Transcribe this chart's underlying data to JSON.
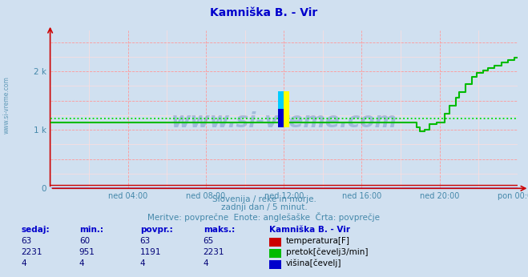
{
  "title": "Kamniška B. - Vir",
  "title_color": "#0000cc",
  "bg_color": "#d0e0f0",
  "plot_bg_color": "#d0e0f0",
  "grid_color_major": "#ff9999",
  "grid_color_minor": "#ffdddd",
  "xlim": [
    0,
    24
  ],
  "ylim": [
    0,
    2700
  ],
  "ytick_positions": [
    0,
    500,
    1000,
    1500,
    2000,
    2500
  ],
  "ytick_labels": [
    "0",
    "",
    "1 k",
    "",
    "2 k",
    ""
  ],
  "xtick_positions": [
    4,
    8,
    12,
    16,
    20,
    24
  ],
  "xtick_labels": [
    "ned 04:00",
    "ned 08:00",
    "ned 12:00",
    "ned 16:00",
    "ned 20:00",
    "pon 00:00"
  ],
  "subtitle1": "Slovenija / reke in morje.",
  "subtitle2": "zadnji dan / 5 minut.",
  "subtitle3": "Meritve: povprečne  Enote: anglešaške  Črta: povprečje",
  "subtitle_color": "#4488aa",
  "temp_color": "#cc0000",
  "flow_color": "#00bb00",
  "height_color": "#0000cc",
  "avg_flow_color": "#00dd00",
  "watermark_color": "#3366aa",
  "table_header_color": "#0000cc",
  "table_data_color": "#000077",
  "temp_sedaj": 63,
  "temp_min": 60,
  "temp_povpr": 63,
  "temp_maks": 65,
  "flow_sedaj": 2231,
  "flow_min": 951,
  "flow_povpr": 1191,
  "flow_maks": 2231,
  "height_sedaj": 4,
  "height_min": 4,
  "height_povpr": 4,
  "height_maks": 4,
  "flow_avg_line": 1191,
  "temp_value": 63,
  "height_value": 4,
  "logo_yellow": "#ffff00",
  "logo_cyan": "#00ccff",
  "logo_blue": "#0000cc"
}
